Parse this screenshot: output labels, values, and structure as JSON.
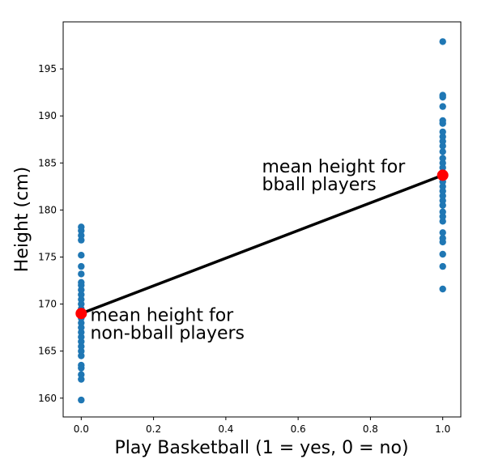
{
  "chart_data": {
    "type": "scatter",
    "title": "",
    "xlabel": "Play Basketball (1 = yes, 0 = no)",
    "ylabel": "Height (cm)",
    "xlim": [
      -0.05,
      1.05
    ],
    "ylim": [
      158,
      200
    ],
    "xticks": [
      0.0,
      0.2,
      0.4,
      0.6,
      0.8,
      1.0
    ],
    "xtick_labels": [
      "0.0",
      "0.2",
      "0.4",
      "0.6",
      "0.8",
      "1.0"
    ],
    "yticks": [
      160,
      165,
      170,
      175,
      180,
      185,
      190,
      195
    ],
    "ytick_labels": [
      "160",
      "165",
      "170",
      "175",
      "180",
      "185",
      "190",
      "195"
    ],
    "grid": false,
    "series": [
      {
        "type": "scatter",
        "color": "#1f77b4",
        "points": [
          [
            0,
            159.8
          ],
          [
            0,
            162.0
          ],
          [
            0,
            162.5
          ],
          [
            0,
            163.2
          ],
          [
            0,
            163.5
          ],
          [
            0,
            164.5
          ],
          [
            0,
            165.0
          ],
          [
            0,
            165.5
          ],
          [
            0,
            166.0
          ],
          [
            0,
            166.5
          ],
          [
            0,
            167.0
          ],
          [
            0,
            167.5
          ],
          [
            0,
            168.0
          ],
          [
            0,
            168.5
          ],
          [
            0,
            169.0
          ],
          [
            0,
            169.5
          ],
          [
            0,
            170.0
          ],
          [
            0,
            170.5
          ],
          [
            0,
            171.0
          ],
          [
            0,
            171.5
          ],
          [
            0,
            172.0
          ],
          [
            0,
            172.3
          ],
          [
            0,
            173.2
          ],
          [
            0,
            174.0
          ],
          [
            0,
            175.2
          ],
          [
            0,
            176.8
          ],
          [
            0,
            177.3
          ],
          [
            0,
            177.8
          ],
          [
            0,
            178.2
          ],
          [
            1,
            171.6
          ],
          [
            1,
            174.0
          ],
          [
            1,
            175.3
          ],
          [
            1,
            176.6
          ],
          [
            1,
            177.0
          ],
          [
            1,
            177.6
          ],
          [
            1,
            178.8
          ],
          [
            1,
            179.3
          ],
          [
            1,
            179.8
          ],
          [
            1,
            180.5
          ],
          [
            1,
            181.0
          ],
          [
            1,
            181.5
          ],
          [
            1,
            182.0
          ],
          [
            1,
            182.5
          ],
          [
            1,
            183.0
          ],
          [
            1,
            183.5
          ],
          [
            1,
            184.0
          ],
          [
            1,
            184.5
          ],
          [
            1,
            185.0
          ],
          [
            1,
            185.5
          ],
          [
            1,
            186.2
          ],
          [
            1,
            186.8
          ],
          [
            1,
            187.3
          ],
          [
            1,
            187.8
          ],
          [
            1,
            188.3
          ],
          [
            1,
            189.2
          ],
          [
            1,
            189.5
          ],
          [
            1,
            191.0
          ],
          [
            1,
            192.0
          ],
          [
            1,
            192.2
          ],
          [
            1,
            197.9
          ]
        ]
      },
      {
        "type": "line",
        "color": "#000000",
        "points": [
          [
            0,
            169.0
          ],
          [
            1,
            183.7
          ]
        ]
      },
      {
        "type": "scatter",
        "color": "#ff0000",
        "points": [
          [
            0,
            169.0
          ],
          [
            1,
            183.7
          ]
        ]
      }
    ],
    "annotations": [
      {
        "lines": [
          "mean height for",
          "non-bball players"
        ],
        "x": 0.025,
        "y": 168.2
      },
      {
        "lines": [
          "mean height for",
          "bball players"
        ],
        "x": 0.5,
        "y": 184.0
      }
    ]
  }
}
